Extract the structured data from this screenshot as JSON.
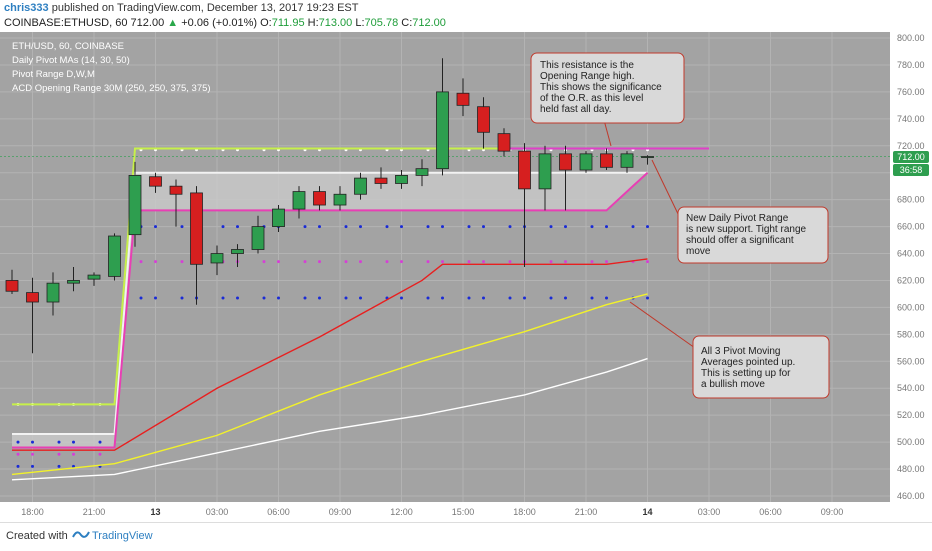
{
  "header": {
    "user": "chris333",
    "published_text": "published on TradingView.com, December 13, 2017 19:23 EST",
    "symbol": "COINBASE:ETHUSD, 60",
    "last_price": "712.00",
    "change": "+0.06 (+0.01%)",
    "ohlc": {
      "o_label": "O:",
      "o": "711.95",
      "h_label": "H:",
      "h": "713.00",
      "l_label": "L:",
      "l": "705.78",
      "c_label": "C:",
      "c": "712.00"
    }
  },
  "legend": [
    "ETH/USD, 60, COINBASE",
    "Daily Pivot MAs (14, 30, 50)",
    "Pivot Range D,W,M",
    "ACD Opening Range 30M (250, 250, 375, 375)"
  ],
  "annotations": [
    {
      "id": "resistance",
      "lines": [
        "This resistance is the",
        "Opening Range high.",
        "This shows the significance",
        "of the O.R. as this level",
        "held fast all day."
      ]
    },
    {
      "id": "pivot-range",
      "lines": [
        "New Daily Pivot Range",
        "is new support. Tight range",
        "should offer a significant",
        "move"
      ]
    },
    {
      "id": "pivot-mas",
      "lines": [
        "All 3 Pivot Moving",
        "Averages pointed up.",
        "This is setting up for",
        "a bullish move"
      ]
    }
  ],
  "price_label": "712.00",
  "countdown_label": "36:58",
  "footer": {
    "created_with": "Created with",
    "brand": "TradingView"
  },
  "colors": {
    "up": "#2e9e4f",
    "down": "#d61f1f",
    "pivot_bottom": "#e83fb4",
    "or_high": "#c7f04a",
    "ma_red": "#e81f1f",
    "ma_yellow": "#f2f22a",
    "ma_white": "#ffffff",
    "dots_blue": "#1a2bd6",
    "dots_magenta": "#d63fd6",
    "background": "#a3a3a3",
    "panel": "#c8c8c8"
  },
  "chart_data": {
    "type": "candlestick",
    "interval": "60",
    "ylim": [
      460,
      800
    ],
    "y_ticks": [
      "800.00",
      "780.00",
      "760.00",
      "740.00",
      "720.00",
      "700.00",
      "680.00",
      "660.00",
      "640.00",
      "620.00",
      "600.00",
      "580.00",
      "560.00",
      "540.00",
      "520.00",
      "500.00",
      "480.00",
      "460.00"
    ],
    "x_ticks": [
      "18:00",
      "21:00",
      "13",
      "03:00",
      "06:00",
      "09:00",
      "12:00",
      "15:00",
      "18:00",
      "21:00",
      "14",
      "03:00",
      "06:00",
      "09:00"
    ],
    "candles": [
      {
        "t": 0,
        "o": 620,
        "h": 628,
        "l": 610,
        "c": 612
      },
      {
        "t": 1,
        "o": 611,
        "h": 622,
        "l": 566,
        "c": 604
      },
      {
        "t": 2,
        "o": 604,
        "h": 626,
        "l": 594,
        "c": 618
      },
      {
        "t": 3,
        "o": 618,
        "h": 630,
        "l": 612,
        "c": 620
      },
      {
        "t": 4,
        "o": 621,
        "h": 626,
        "l": 616,
        "c": 624
      },
      {
        "t": 5,
        "o": 623,
        "h": 655,
        "l": 620,
        "c": 653
      },
      {
        "t": 6,
        "o": 654,
        "h": 708,
        "l": 645,
        "c": 698
      },
      {
        "t": 7,
        "o": 697,
        "h": 700,
        "l": 685,
        "c": 690
      },
      {
        "t": 8,
        "o": 690,
        "h": 695,
        "l": 660,
        "c": 684
      },
      {
        "t": 9,
        "o": 685,
        "h": 690,
        "l": 602,
        "c": 632
      },
      {
        "t": 10,
        "o": 633,
        "h": 646,
        "l": 624,
        "c": 640
      },
      {
        "t": 11,
        "o": 640,
        "h": 647,
        "l": 630,
        "c": 643
      },
      {
        "t": 12,
        "o": 643,
        "h": 668,
        "l": 640,
        "c": 660
      },
      {
        "t": 13,
        "o": 660,
        "h": 676,
        "l": 656,
        "c": 673
      },
      {
        "t": 14,
        "o": 673,
        "h": 690,
        "l": 666,
        "c": 686
      },
      {
        "t": 15,
        "o": 686,
        "h": 690,
        "l": 672,
        "c": 676
      },
      {
        "t": 16,
        "o": 676,
        "h": 690,
        "l": 672,
        "c": 684
      },
      {
        "t": 17,
        "o": 684,
        "h": 700,
        "l": 680,
        "c": 696
      },
      {
        "t": 18,
        "o": 696,
        "h": 704,
        "l": 688,
        "c": 692
      },
      {
        "t": 19,
        "o": 692,
        "h": 702,
        "l": 688,
        "c": 698
      },
      {
        "t": 20,
        "o": 698,
        "h": 710,
        "l": 690,
        "c": 703
      },
      {
        "t": 21,
        "o": 703,
        "h": 785,
        "l": 698,
        "c": 760
      },
      {
        "t": 22,
        "o": 759,
        "h": 770,
        "l": 742,
        "c": 750
      },
      {
        "t": 23,
        "o": 749,
        "h": 756,
        "l": 718,
        "c": 730
      },
      {
        "t": 24,
        "o": 729,
        "h": 733,
        "l": 712,
        "c": 716
      },
      {
        "t": 25,
        "o": 716,
        "h": 722,
        "l": 630,
        "c": 688
      },
      {
        "t": 26,
        "o": 688,
        "h": 720,
        "l": 672,
        "c": 714
      },
      {
        "t": 27,
        "o": 714,
        "h": 720,
        "l": 672,
        "c": 702
      },
      {
        "t": 28,
        "o": 702,
        "h": 716,
        "l": 700,
        "c": 714
      },
      {
        "t": 29,
        "o": 714,
        "h": 718,
        "l": 702,
        "c": 704
      },
      {
        "t": 30,
        "o": 704,
        "h": 716,
        "l": 700,
        "c": 714
      },
      {
        "t": 31,
        "o": 712,
        "h": 713,
        "l": 706,
        "c": 712
      }
    ],
    "series": [
      {
        "name": "Opening Range high",
        "values": [
          [
            0,
            528
          ],
          [
            5,
            528
          ],
          [
            6,
            718
          ],
          [
            31,
            718
          ],
          [
            34,
            718
          ]
        ]
      },
      {
        "name": "Pivot range top",
        "values": [
          [
            0,
            506
          ],
          [
            5,
            506
          ],
          [
            6,
            700
          ],
          [
            31,
            700
          ]
        ]
      },
      {
        "name": "Pivot range bottom",
        "values": [
          [
            0,
            496
          ],
          [
            5,
            496
          ],
          [
            6,
            672
          ],
          [
            29,
            672
          ],
          [
            31,
            700
          ]
        ]
      },
      {
        "name": "Pivot MA 14",
        "values": [
          [
            0,
            494
          ],
          [
            5,
            494
          ],
          [
            10,
            540
          ],
          [
            15,
            578
          ],
          [
            20,
            620
          ],
          [
            21,
            632
          ],
          [
            29,
            632
          ],
          [
            31,
            636
          ]
        ]
      },
      {
        "name": "Pivot MA 30",
        "values": [
          [
            0,
            476
          ],
          [
            5,
            484
          ],
          [
            10,
            505
          ],
          [
            15,
            535
          ],
          [
            20,
            560
          ],
          [
            25,
            582
          ],
          [
            29,
            602
          ],
          [
            31,
            610
          ]
        ]
      },
      {
        "name": "Pivot MA 50",
        "values": [
          [
            0,
            472
          ],
          [
            5,
            476
          ],
          [
            10,
            492
          ],
          [
            15,
            508
          ],
          [
            20,
            520
          ],
          [
            25,
            535
          ],
          [
            29,
            552
          ],
          [
            31,
            562
          ]
        ]
      },
      {
        "name": "Opening Range dots",
        "values": [
          [
            0,
            528
          ],
          [
            6,
            717
          ]
        ]
      },
      {
        "name": "Blue dots level 1",
        "values": [
          [
            0,
            500
          ],
          [
            6,
            660
          ]
        ]
      },
      {
        "name": "Blue dots level 2",
        "values": [
          [
            0,
            482
          ],
          [
            6,
            607
          ]
        ]
      },
      {
        "name": "Magenta dots",
        "values": [
          [
            0,
            491
          ],
          [
            6,
            634
          ]
        ]
      }
    ]
  }
}
